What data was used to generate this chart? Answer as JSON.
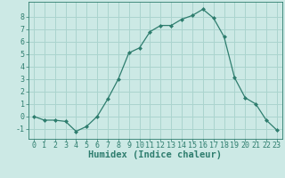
{
  "x": [
    0,
    1,
    2,
    3,
    4,
    5,
    6,
    7,
    8,
    9,
    10,
    11,
    12,
    13,
    14,
    15,
    16,
    17,
    18,
    19,
    20,
    21,
    22,
    23
  ],
  "y": [
    0,
    -0.3,
    -0.3,
    -0.4,
    -1.2,
    -0.8,
    0.0,
    1.4,
    3.0,
    5.1,
    5.5,
    6.8,
    7.3,
    7.3,
    7.8,
    8.1,
    8.6,
    7.9,
    6.4,
    3.1,
    1.5,
    1.0,
    -0.3,
    -1.1
  ],
  "line_color": "#2e7d6e",
  "marker": "D",
  "marker_size": 2.0,
  "bg_color": "#cce9e5",
  "grid_color": "#aad4ce",
  "xlabel": "Humidex (Indice chaleur)",
  "xlim": [
    -0.5,
    23.5
  ],
  "ylim": [
    -1.8,
    9.2
  ],
  "yticks": [
    -1,
    0,
    1,
    2,
    3,
    4,
    5,
    6,
    7,
    8
  ],
  "xticks": [
    0,
    1,
    2,
    3,
    4,
    5,
    6,
    7,
    8,
    9,
    10,
    11,
    12,
    13,
    14,
    15,
    16,
    17,
    18,
    19,
    20,
    21,
    22,
    23
  ],
  "tick_color": "#2e7d6e",
  "label_color": "#2e7d6e",
  "xlabel_fontsize": 7.5,
  "tick_fontsize": 6.0,
  "linewidth": 0.9
}
